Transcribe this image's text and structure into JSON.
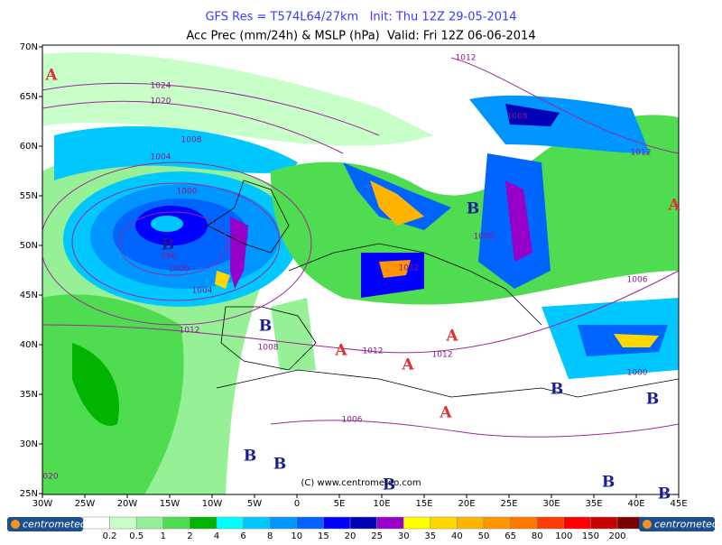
{
  "header": {
    "line1": "GFS Res = T574L64/27km   Init: Thu 12Z 29-05-2014",
    "line2": "Acc Prec (mm/24h) & MSLP (hPa)  Valid: Fri 12Z 06-06-2014"
  },
  "map": {
    "lat_labels": [
      "70N",
      "65N",
      "60N",
      "55N",
      "50N",
      "45N",
      "40N",
      "35N",
      "30N",
      "25N"
    ],
    "lon_labels": [
      "30W",
      "25W",
      "20W",
      "15W",
      "10W",
      "5W",
      "0",
      "5E",
      "10E",
      "15E",
      "20E",
      "25E",
      "30E",
      "35E",
      "40E",
      "45E"
    ],
    "isobar_labels": [
      "1012",
      "1024",
      "1020",
      "1008",
      "1004",
      "1000",
      "996",
      "1000",
      "1004",
      "1012",
      "1008",
      "1012",
      "1012",
      "1006",
      "1008",
      "1012",
      "1008",
      "1012",
      "1006",
      "1000",
      "020"
    ],
    "centers": [
      "A",
      "A",
      "A",
      "A",
      "A",
      "A",
      "B",
      "B",
      "B",
      "B",
      "B",
      "B",
      "B",
      "B",
      "B",
      "B"
    ],
    "copyright": "(C) www.centrometeo.com"
  },
  "legend": {
    "levels": [
      "0.2",
      "0.5",
      "1",
      "2",
      "4",
      "6",
      "8",
      "10",
      "15",
      "20",
      "25",
      "30",
      "35",
      "40",
      "50",
      "65",
      "80",
      "100",
      "150",
      "200"
    ],
    "colors": [
      "#ffffff",
      "#c8ffc8",
      "#96f096",
      "#50dc50",
      "#00b400",
      "#00ffff",
      "#00c8ff",
      "#0096ff",
      "#0064ff",
      "#0000ff",
      "#0000b4",
      "#9600c8",
      "#ffff00",
      "#ffd700",
      "#ffb400",
      "#ff9600",
      "#ff7800",
      "#ff3c00",
      "#ff0000",
      "#c80000",
      "#780000"
    ]
  },
  "logos": [
    "centrometeo",
    "centrometeo"
  ]
}
